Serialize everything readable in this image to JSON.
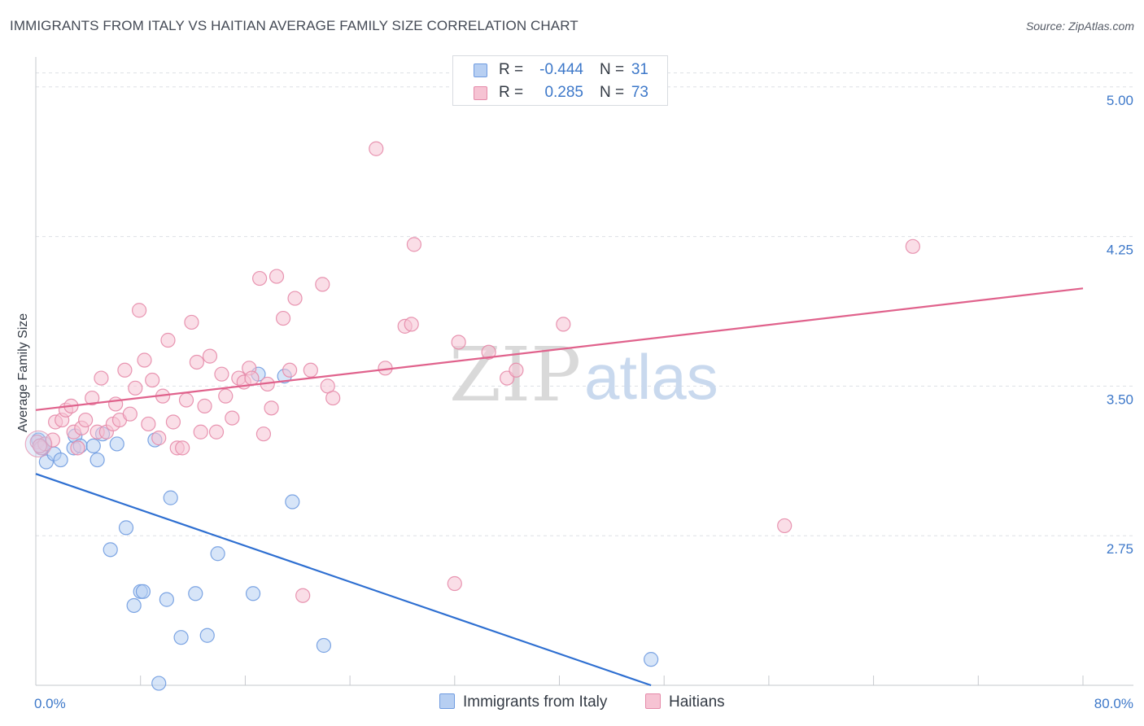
{
  "title": "IMMIGRANTS FROM ITALY VS HAITIAN AVERAGE FAMILY SIZE CORRELATION CHART",
  "source": "Source: ZipAtlas.com",
  "watermark": {
    "zip": "ZIP",
    "atlas": "atlas"
  },
  "legend": {
    "rows": [
      {
        "r_label": "R =",
        "r_value": "-0.444",
        "n_label": "N =",
        "n_value": "31"
      },
      {
        "r_label": "R =",
        "r_value": "0.285",
        "n_label": "N =",
        "n_value": "73"
      }
    ]
  },
  "colors": {
    "blue_fill": "#b7cff2",
    "blue_stroke": "#6f9be0",
    "blue_line": "#2e6fd1",
    "pink_fill": "#f6c3d3",
    "pink_stroke": "#e58aa9",
    "pink_line": "#e0628c",
    "grid": "#dde0e5",
    "tick_label": "#3d78c9"
  },
  "chart_data": {
    "type": "scatter",
    "title": "IMMIGRANTS FROM ITALY VS HAITIAN AVERAGE FAMILY SIZE CORRELATION CHART",
    "xlabel": "",
    "ylabel": "Average Family Size",
    "xlim": [
      0,
      80
    ],
    "ylim": [
      2.0,
      5.15
    ],
    "x_tick_labels": [
      "0.0%",
      "80.0%"
    ],
    "y_ticks": [
      2.75,
      3.5,
      4.25,
      5.0
    ],
    "y_tick_labels": [
      "2.75",
      "3.50",
      "4.25",
      "5.00"
    ],
    "grid": "horizontal dashed",
    "legend_position": "top-center",
    "series": [
      {
        "name": "Immigrants from Italy",
        "color": "#6f9be0",
        "r": -0.444,
        "n": 31,
        "trend": {
          "x": [
            0,
            47
          ],
          "y": [
            3.06,
            2.0
          ]
        },
        "points": [
          {
            "x": 0.2,
            "y": 3.23
          },
          {
            "x": 0.5,
            "y": 3.19
          },
          {
            "x": 0.8,
            "y": 3.12
          },
          {
            "x": 1.4,
            "y": 3.16
          },
          {
            "x": 1.9,
            "y": 3.13
          },
          {
            "x": 2.9,
            "y": 3.19
          },
          {
            "x": 3.0,
            "y": 3.25
          },
          {
            "x": 3.4,
            "y": 3.2
          },
          {
            "x": 4.4,
            "y": 3.2
          },
          {
            "x": 4.7,
            "y": 3.13
          },
          {
            "x": 5.1,
            "y": 3.26
          },
          {
            "x": 6.2,
            "y": 3.21
          },
          {
            "x": 6.9,
            "y": 2.79
          },
          {
            "x": 5.7,
            "y": 2.68
          },
          {
            "x": 7.5,
            "y": 2.4
          },
          {
            "x": 8.0,
            "y": 2.47
          },
          {
            "x": 8.2,
            "y": 2.47
          },
          {
            "x": 10.0,
            "y": 2.43
          },
          {
            "x": 9.1,
            "y": 3.23
          },
          {
            "x": 10.3,
            "y": 2.94
          },
          {
            "x": 11.1,
            "y": 2.24
          },
          {
            "x": 12.2,
            "y": 2.46
          },
          {
            "x": 13.1,
            "y": 2.25
          },
          {
            "x": 13.9,
            "y": 2.66
          },
          {
            "x": 16.6,
            "y": 2.46
          },
          {
            "x": 17.0,
            "y": 3.56
          },
          {
            "x": 19.0,
            "y": 3.55
          },
          {
            "x": 19.6,
            "y": 2.92
          },
          {
            "x": 22.0,
            "y": 2.2
          },
          {
            "x": 47.0,
            "y": 2.13
          },
          {
            "x": 9.4,
            "y": 2.01
          }
        ]
      },
      {
        "name": "Haitians",
        "color": "#e58aa9",
        "r": 0.285,
        "n": 73,
        "trend": {
          "x": [
            0,
            80
          ],
          "y": [
            3.38,
            3.99
          ]
        },
        "points": [
          {
            "x": 0.1,
            "y": 3.22
          },
          {
            "x": 0.4,
            "y": 3.19
          },
          {
            "x": 0.7,
            "y": 3.21
          },
          {
            "x": 1.3,
            "y": 3.23
          },
          {
            "x": 1.5,
            "y": 3.32
          },
          {
            "x": 2.0,
            "y": 3.33
          },
          {
            "x": 2.3,
            "y": 3.38
          },
          {
            "x": 2.7,
            "y": 3.4
          },
          {
            "x": 2.9,
            "y": 3.27
          },
          {
            "x": 3.2,
            "y": 3.19
          },
          {
            "x": 3.5,
            "y": 3.29
          },
          {
            "x": 3.8,
            "y": 3.33
          },
          {
            "x": 4.3,
            "y": 3.44
          },
          {
            "x": 4.7,
            "y": 3.27
          },
          {
            "x": 5.0,
            "y": 3.54
          },
          {
            "x": 5.4,
            "y": 3.27
          },
          {
            "x": 5.9,
            "y": 3.31
          },
          {
            "x": 6.1,
            "y": 3.41
          },
          {
            "x": 6.4,
            "y": 3.33
          },
          {
            "x": 6.8,
            "y": 3.58
          },
          {
            "x": 7.2,
            "y": 3.36
          },
          {
            "x": 7.6,
            "y": 3.49
          },
          {
            "x": 7.9,
            "y": 3.88
          },
          {
            "x": 8.3,
            "y": 3.63
          },
          {
            "x": 8.6,
            "y": 3.31
          },
          {
            "x": 8.9,
            "y": 3.53
          },
          {
            "x": 9.4,
            "y": 3.24
          },
          {
            "x": 9.7,
            "y": 3.45
          },
          {
            "x": 10.1,
            "y": 3.73
          },
          {
            "x": 10.5,
            "y": 3.32
          },
          {
            "x": 10.8,
            "y": 3.19
          },
          {
            "x": 11.2,
            "y": 3.19
          },
          {
            "x": 11.5,
            "y": 3.43
          },
          {
            "x": 11.9,
            "y": 3.82
          },
          {
            "x": 12.3,
            "y": 3.62
          },
          {
            "x": 12.6,
            "y": 3.27
          },
          {
            "x": 12.9,
            "y": 3.4
          },
          {
            "x": 13.3,
            "y": 3.65
          },
          {
            "x": 13.8,
            "y": 3.27
          },
          {
            "x": 14.2,
            "y": 3.56
          },
          {
            "x": 14.5,
            "y": 3.45
          },
          {
            "x": 15.0,
            "y": 3.34
          },
          {
            "x": 15.5,
            "y": 3.54
          },
          {
            "x": 15.9,
            "y": 3.52
          },
          {
            "x": 16.3,
            "y": 3.59
          },
          {
            "x": 16.5,
            "y": 3.54
          },
          {
            "x": 17.1,
            "y": 4.04
          },
          {
            "x": 17.4,
            "y": 3.26
          },
          {
            "x": 17.7,
            "y": 3.51
          },
          {
            "x": 18.0,
            "y": 3.39
          },
          {
            "x": 18.4,
            "y": 4.05
          },
          {
            "x": 18.9,
            "y": 3.84
          },
          {
            "x": 19.4,
            "y": 3.58
          },
          {
            "x": 19.8,
            "y": 3.94
          },
          {
            "x": 21.0,
            "y": 3.58
          },
          {
            "x": 21.9,
            "y": 4.01
          },
          {
            "x": 22.3,
            "y": 3.5
          },
          {
            "x": 22.7,
            "y": 3.44
          },
          {
            "x": 20.4,
            "y": 2.45
          },
          {
            "x": 26.0,
            "y": 4.69
          },
          {
            "x": 26.7,
            "y": 3.59
          },
          {
            "x": 28.9,
            "y": 4.21
          },
          {
            "x": 28.2,
            "y": 3.8
          },
          {
            "x": 28.7,
            "y": 3.81
          },
          {
            "x": 32.0,
            "y": 2.51
          },
          {
            "x": 32.3,
            "y": 3.72
          },
          {
            "x": 34.6,
            "y": 3.67
          },
          {
            "x": 36.0,
            "y": 3.54
          },
          {
            "x": 36.7,
            "y": 3.58
          },
          {
            "x": 40.3,
            "y": 3.81
          },
          {
            "x": 57.2,
            "y": 2.8
          },
          {
            "x": 67.0,
            "y": 4.2
          },
          {
            "x": 0.3,
            "y": 3.2
          }
        ]
      }
    ]
  }
}
